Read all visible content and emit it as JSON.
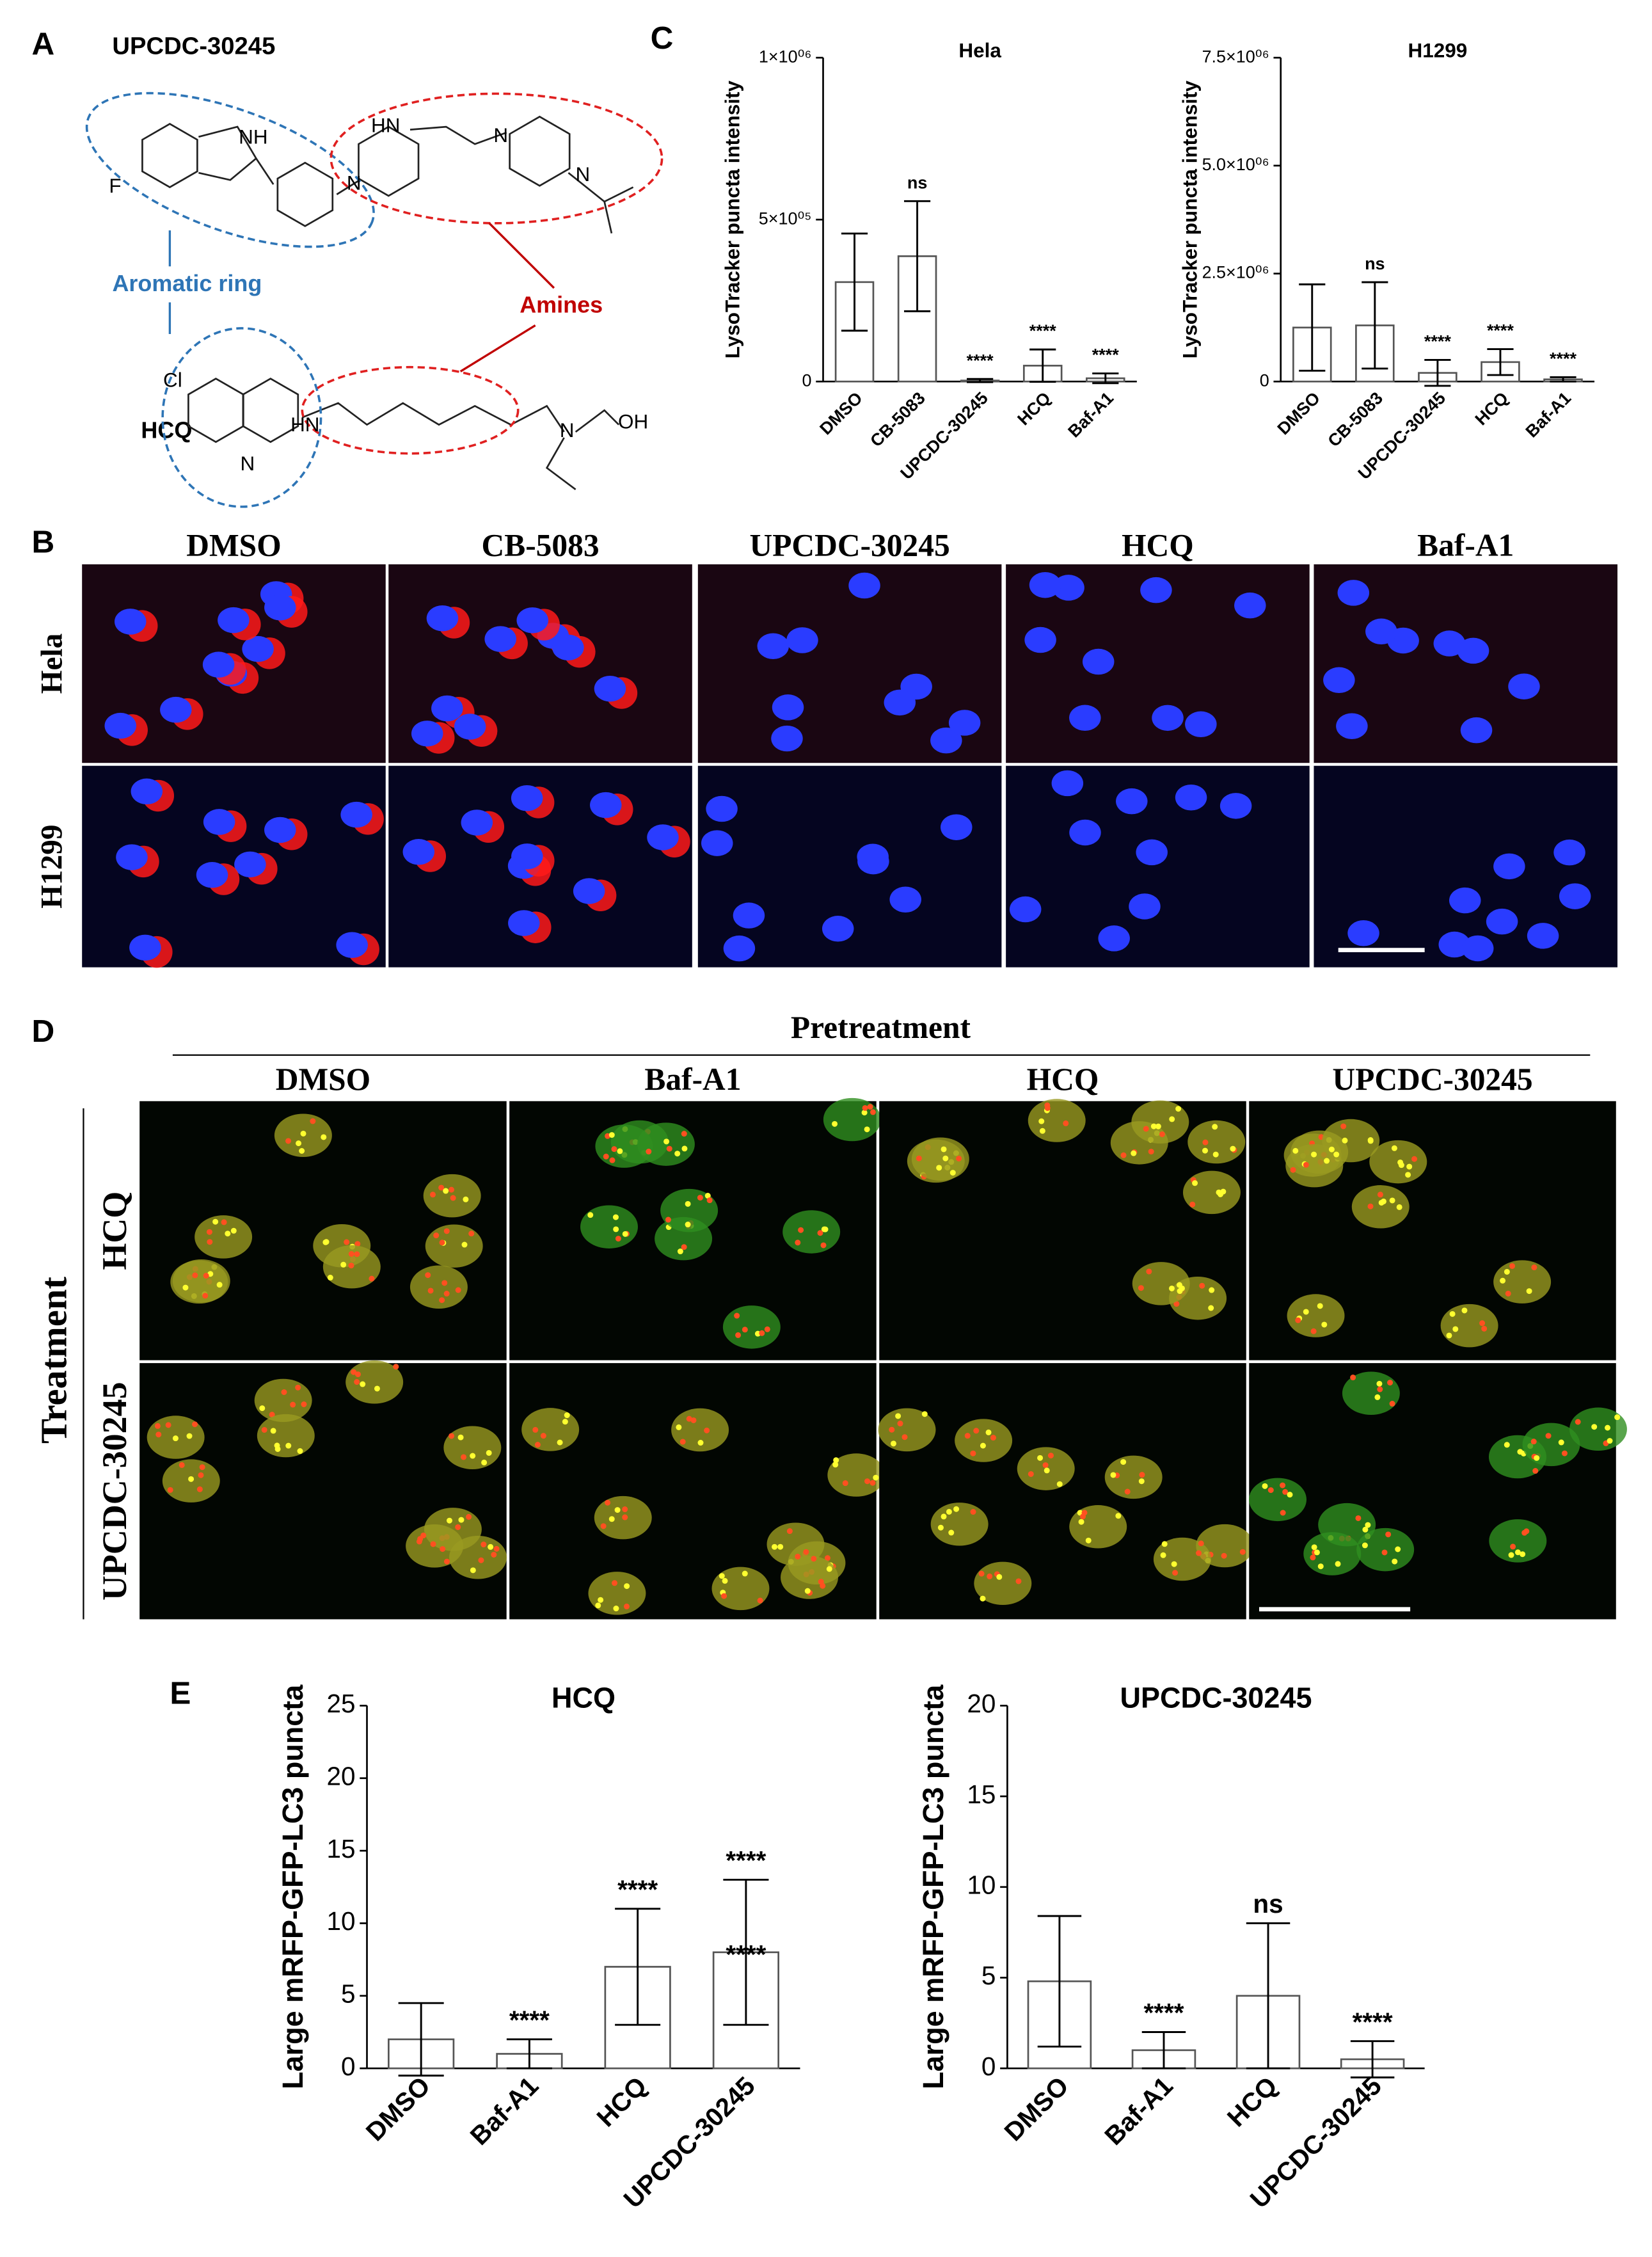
{
  "panels": {
    "a": "A",
    "b": "B",
    "c": "C",
    "d": "D",
    "e": "E"
  },
  "panel_a": {
    "compound": "UPCDC-30245",
    "aromatic": "Aromatic ring",
    "amines": "Amines",
    "hcq": "HCQ",
    "atoms": [
      "F",
      "NH",
      "HN",
      "N",
      "N",
      "N",
      "Cl",
      "N",
      "HN",
      "N",
      "OH"
    ]
  },
  "panel_b": {
    "columns": [
      "DMSO",
      "CB-5083",
      "UPCDC-30245",
      "HCQ",
      "Baf-A1"
    ],
    "rows": [
      "Hela",
      "H1299"
    ]
  },
  "panel_d": {
    "header": "Pretreatment",
    "columns": [
      "DMSO",
      "Baf-A1",
      "HCQ",
      "UPCDC-30245"
    ],
    "side": "Treatment",
    "rows": [
      "HCQ",
      "UPCDC-30245"
    ]
  },
  "chart_data": [
    {
      "type": "bar",
      "title": "Hela",
      "y_label": "LysoTracker puncta intensity",
      "color": "#ffffff",
      "categories": [
        "DMSO",
        "CB-5083",
        "UPCDC-30245",
        "HCQ",
        "Baf-A1"
      ],
      "values": [
        307000,
        387000,
        3000,
        49000,
        10000
      ],
      "errors": [
        150000,
        170000,
        5000,
        50000,
        15000
      ],
      "annotations": [
        null,
        "ns",
        "****",
        "****",
        "****"
      ],
      "ylim": [
        0,
        1000000
      ],
      "yticks": [
        0,
        {
          "value": 500000,
          "label": "5×10⁰⁵"
        },
        {
          "value": 1000000,
          "label": "1×10⁰⁶"
        }
      ]
    },
    {
      "type": "bar",
      "title": "H1299",
      "y_label": "LysoTracker puncta intensity",
      "color": "#ffffff",
      "categories": [
        "DMSO",
        "CB-5083",
        "UPCDC-30245",
        "HCQ",
        "Baf-A1"
      ],
      "values": [
        1250000,
        1300000,
        200000,
        450000,
        50000
      ],
      "errors": [
        1000000,
        1000000,
        300000,
        300000,
        50000
      ],
      "annotations": [
        null,
        "ns",
        "****",
        "****",
        "****"
      ],
      "ylim": [
        0,
        7500000
      ],
      "yticks": [
        0,
        {
          "value": 2500000,
          "label": "2.5×10⁰⁶"
        },
        {
          "value": 5000000,
          "label": "5.0×10⁰⁶"
        },
        {
          "value": 7500000,
          "label": "7.5×10⁰⁶"
        }
      ]
    },
    {
      "type": "bar",
      "title": "HCQ",
      "y_label": "Large mRFP-GFP-LC3 puncta",
      "color": "#ffffff",
      "categories": [
        "DMSO",
        "Baf-A1",
        "HCQ",
        "UPCDC-30245"
      ],
      "values": [
        2,
        1,
        7,
        8
      ],
      "errors": [
        2.5,
        1,
        4,
        5
      ],
      "annotations": [
        null,
        "****",
        "****",
        "****"
      ],
      "inner_labels": [
        null,
        null,
        null,
        "****"
      ],
      "ylim": [
        0,
        25
      ],
      "yticks": [
        0,
        5,
        10,
        15,
        20,
        25
      ]
    },
    {
      "type": "bar",
      "title": "UPCDC-30245",
      "y_label": "Large mRFP-GFP-LC3 puncta",
      "color": "#ffffff",
      "categories": [
        "DMSO",
        "Baf-A1",
        "HCQ",
        "UPCDC-30245"
      ],
      "values": [
        4.8,
        1,
        4,
        0.5
      ],
      "errors": [
        3.6,
        1,
        4,
        1
      ],
      "annotations": [
        null,
        "****",
        "ns",
        "****"
      ],
      "ylim": [
        0,
        20
      ],
      "yticks": [
        0,
        5,
        10,
        15,
        20
      ]
    }
  ]
}
